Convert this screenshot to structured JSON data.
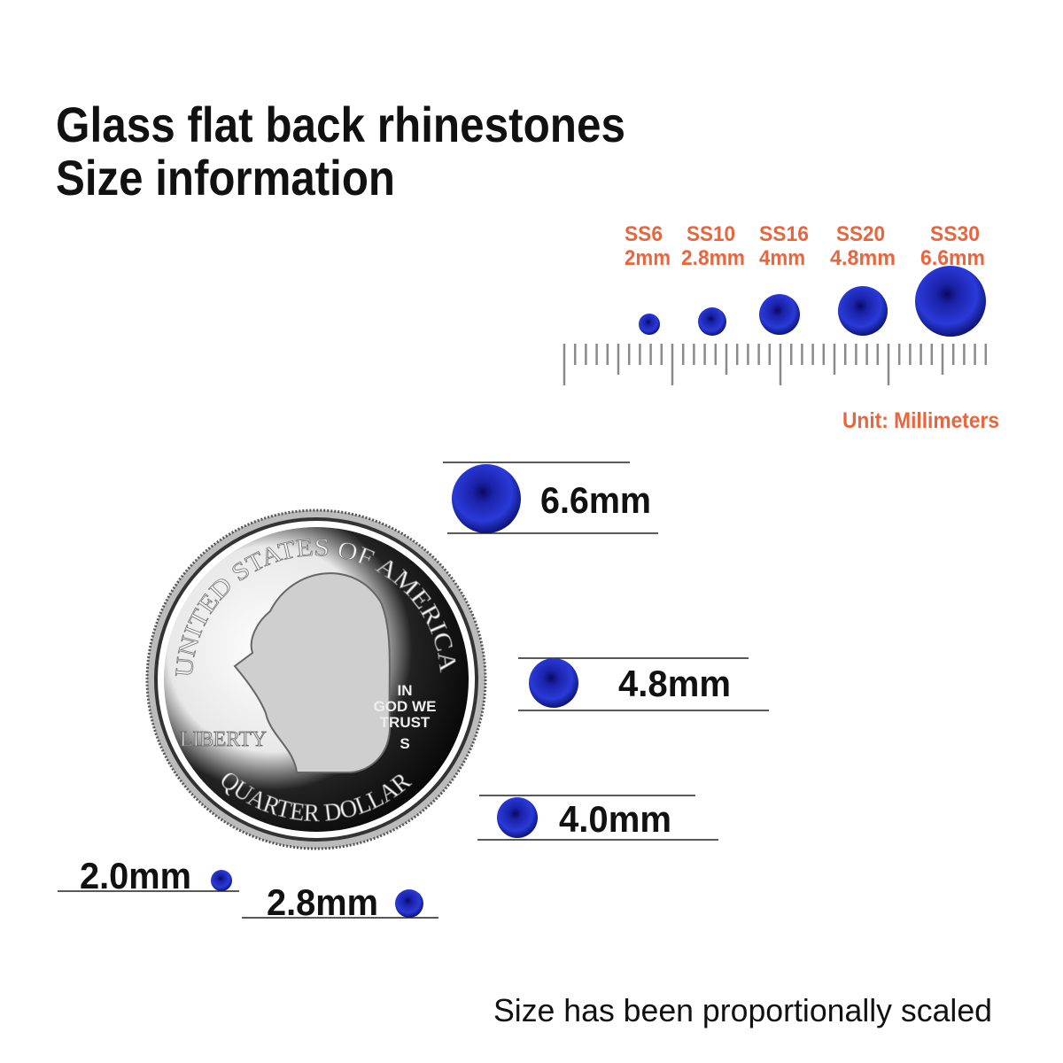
{
  "title": {
    "line1": "Glass flat back rhinestones",
    "line2": "Size information"
  },
  "scale_chart": {
    "sizes": [
      {
        "code": "SS6",
        "size": "2mm",
        "mm": 2.0
      },
      {
        "code": "SS10",
        "size": "2.8mm",
        "mm": 2.8
      },
      {
        "code": "SS16",
        "size": "4mm",
        "mm": 4.0
      },
      {
        "code": "SS20",
        "size": "4.8mm",
        "mm": 4.8
      },
      {
        "code": "SS30",
        "size": "6.6mm",
        "mm": 6.6
      }
    ],
    "unit_label": "Unit: Millimeters"
  },
  "comparison": {
    "labels": {
      "s66": "6.6mm",
      "s48": "4.8mm",
      "s40": "4.0mm",
      "s20": "2.0mm",
      "s28": "2.8mm"
    }
  },
  "coin": {
    "top_text": "UNITED STATES OF AMERICA",
    "bottom_text": "QUARTER DOLLAR",
    "liberty": "LIBERTY",
    "motto": [
      "IN",
      "GOD WE",
      "TRUST"
    ],
    "mint_mark": "S"
  },
  "footer": "Size has been proportionally scaled",
  "colors": {
    "accent": "#e8653d",
    "gem": "#1a2bb8",
    "text": "#111111"
  }
}
